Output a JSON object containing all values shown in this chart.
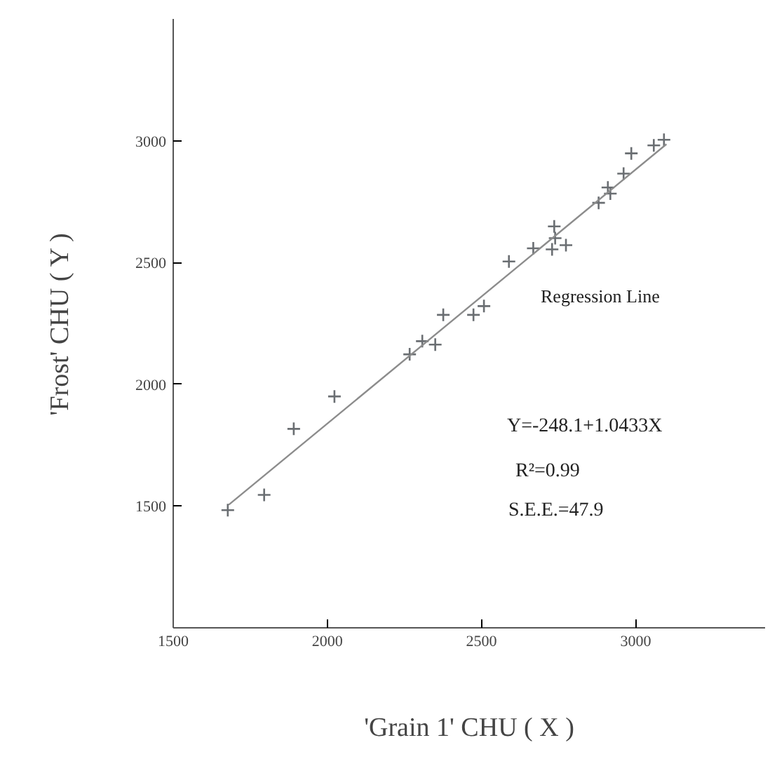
{
  "chart_data": {
    "type": "scatter",
    "xlabel": "'Grain 1' CHU ( X )",
    "ylabel": "'Frost' CHU ( Y )",
    "xlim": [
      1500,
      3420
    ],
    "ylim": [
      1000,
      3500
    ],
    "xticks": [
      1500,
      2000,
      2500,
      3000
    ],
    "yticks": [
      1500,
      2000,
      2500,
      3000
    ],
    "grid": false,
    "series": [
      {
        "marker": "cross",
        "color": "#6a6e72",
        "x": [
          1677,
          1795,
          1891,
          2023,
          2267,
          2308,
          2350,
          2376,
          2474,
          2508,
          2589,
          2668,
          2736,
          2739,
          2729,
          2774,
          2880,
          2910,
          2918,
          2961,
          2986,
          3059,
          3092
        ],
        "values": [
          1483,
          1546,
          1817,
          1950,
          2123,
          2177,
          2163,
          2285,
          2285,
          2321,
          2504,
          2558,
          2648,
          2600,
          2554,
          2571,
          2745,
          2808,
          2783,
          2865,
          2948,
          2981,
          3004
        ]
      },
      {
        "type": "line",
        "color": "#8c8c8c",
        "line_style": "solid",
        "x": [
          1680,
          3100
        ],
        "values": [
          1505,
          2986
        ]
      }
    ],
    "annotations": [
      "Regression Line",
      "Y=-248.1+1.0433X",
      "R²=0.99",
      "S.E.E.=47.9"
    ]
  }
}
